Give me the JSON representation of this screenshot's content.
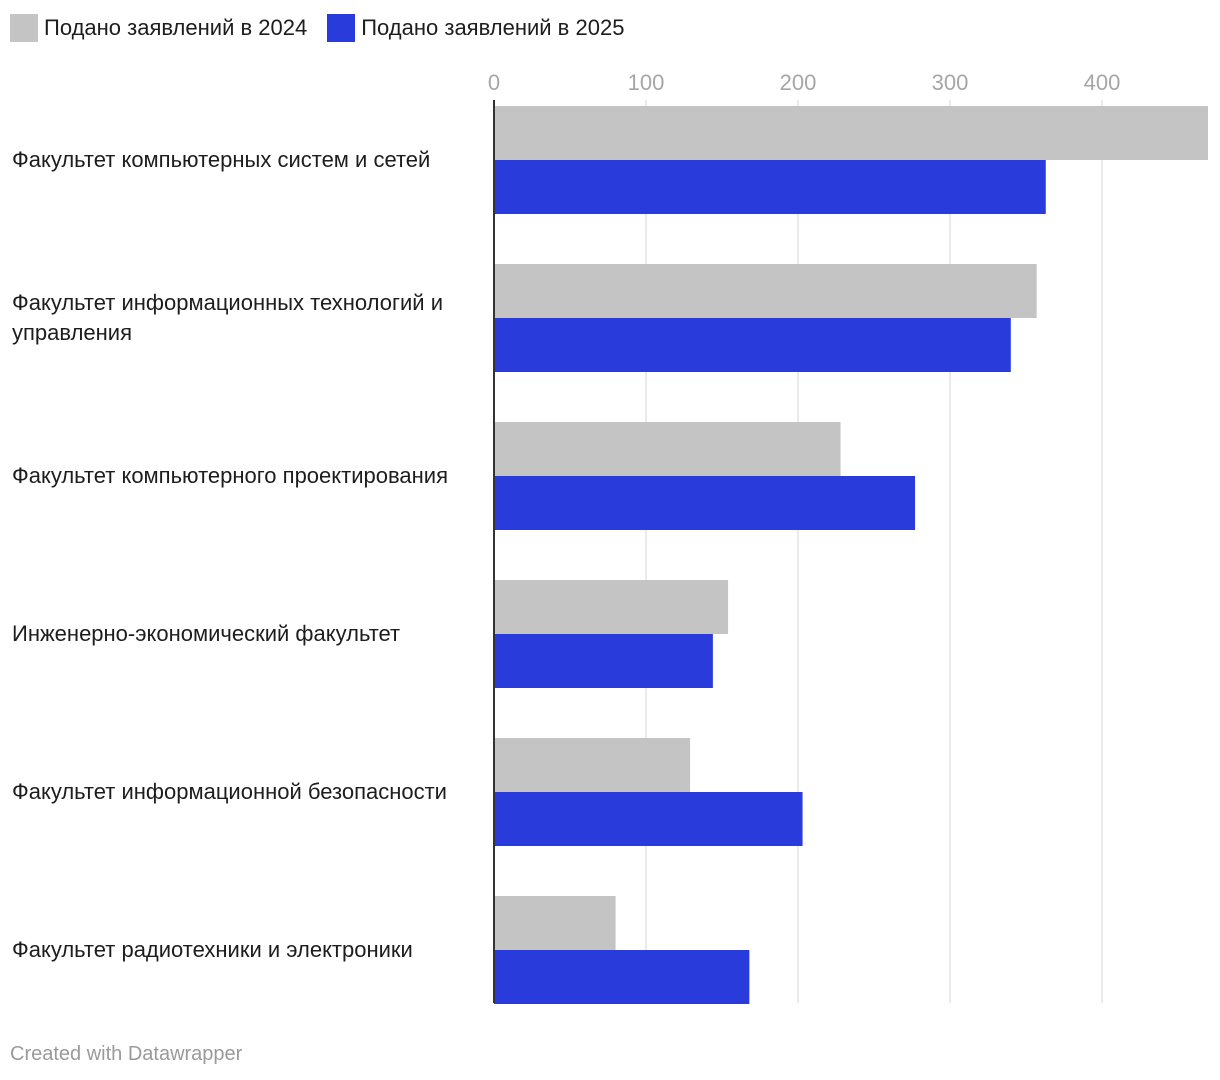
{
  "chart_data": {
    "type": "bar",
    "orientation": "horizontal",
    "categories": [
      "Факультет компьютерных систем и сетей",
      "Факультет информационных технологий и управления",
      "Факультет компьютерного проектирования",
      "Инженерно-экономический факультет",
      "Факультет информационной безопасности",
      "Факультет радиотехники и электроники"
    ],
    "series": [
      {
        "name": "Подано заявлений в 2024",
        "color": "#c4c4c4",
        "values": [
          470,
          357,
          228,
          154,
          129,
          80
        ]
      },
      {
        "name": "Подано заявлений в 2025",
        "color": "#2a3bdb",
        "values": [
          363,
          340,
          277,
          144,
          203,
          168
        ]
      }
    ],
    "xticks": [
      0,
      100,
      200,
      300,
      400
    ],
    "xlim": [
      0,
      470
    ],
    "grid": true,
    "legend": "top-left"
  },
  "credit": "Created with Datawrapper"
}
